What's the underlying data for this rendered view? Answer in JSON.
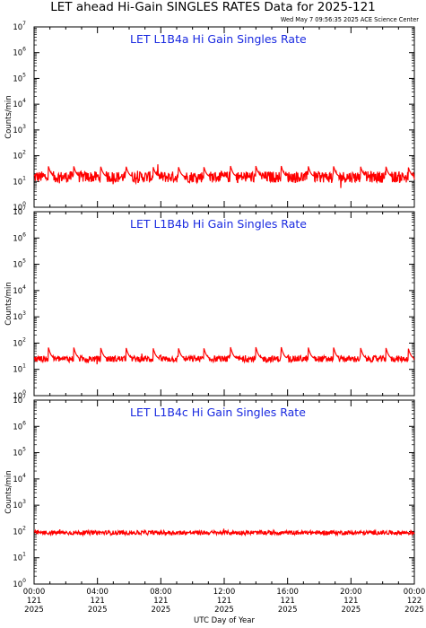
{
  "header": {
    "title": "LET ahead Hi-Gain SINGLES RATES Data for 2025-121",
    "timestamp": "Wed May  7 09:56:35 2025 ACE Science Center"
  },
  "colors": {
    "series": "#ff0000",
    "panel_title": "#1a2ae0",
    "axes": "#000000"
  },
  "chart_data": [
    {
      "type": "line",
      "title": "LET L1B4a Hi Gain Singles Rate",
      "ylabel": "Counts/min",
      "xlabel": "UTC Day of Year",
      "yscale": "log",
      "ylim": [
        1,
        10000000
      ],
      "xlim": [
        "121 00:00",
        "122 00:00"
      ],
      "baseline": 15,
      "noise": 0.22,
      "peak": 40,
      "peak_times_hours": [
        0.9,
        2.5,
        4.2,
        5.8,
        7.5,
        9.1,
        10.7,
        12.4,
        14.0,
        15.6,
        17.3,
        18.9,
        20.6,
        22.2,
        23.6
      ],
      "series": [
        {
          "values_summary": "approximately 10-20 counts/min with periodic spikes to ~40"
        }
      ]
    },
    {
      "type": "line",
      "title": "LET L1B4b Hi Gain Singles Rate",
      "ylabel": "Counts/min",
      "xlabel": "UTC Day of Year",
      "yscale": "log",
      "ylim": [
        1,
        10000000
      ],
      "xlim": [
        "121 00:00",
        "122 00:00"
      ],
      "baseline": 25,
      "noise": 0.12,
      "peak": 70,
      "peak_times_hours": [
        0.9,
        2.5,
        4.2,
        5.8,
        7.5,
        9.1,
        10.7,
        12.4,
        14.0,
        15.6,
        17.3,
        18.9,
        20.6,
        22.2,
        23.6
      ],
      "series": [
        {
          "values_summary": "approximately 20-30 counts/min with periodic spikes to ~70"
        }
      ]
    },
    {
      "type": "line",
      "title": "LET L1B4c Hi Gain Singles Rate",
      "ylabel": "Counts/min",
      "xlabel": "UTC Day of Year",
      "yscale": "log",
      "ylim": [
        1,
        10000000
      ],
      "xlim": [
        "121 00:00",
        "122 00:00"
      ],
      "baseline": 90,
      "noise": 0.08,
      "peak": 120,
      "peak_times_hours": [],
      "series": [
        {
          "values_summary": "approximately 80-110 counts/min, steady"
        }
      ]
    }
  ],
  "yticks": [
    {
      "base": "10",
      "exp": "0"
    },
    {
      "base": "10",
      "exp": "1"
    },
    {
      "base": "10",
      "exp": "2"
    },
    {
      "base": "10",
      "exp": "3"
    },
    {
      "base": "10",
      "exp": "4"
    },
    {
      "base": "10",
      "exp": "5"
    },
    {
      "base": "10",
      "exp": "6"
    },
    {
      "base": "10",
      "exp": "7"
    }
  ],
  "xticks": [
    {
      "time": "00:00",
      "doy": "121",
      "year": "2025"
    },
    {
      "time": "04:00",
      "doy": "121",
      "year": "2025"
    },
    {
      "time": "08:00",
      "doy": "121",
      "year": "2025"
    },
    {
      "time": "12:00",
      "doy": "121",
      "year": "2025"
    },
    {
      "time": "16:00",
      "doy": "121",
      "year": "2025"
    },
    {
      "time": "20:00",
      "doy": "121",
      "year": "2025"
    },
    {
      "time": "00:00",
      "doy": "122",
      "year": "2025"
    }
  ]
}
